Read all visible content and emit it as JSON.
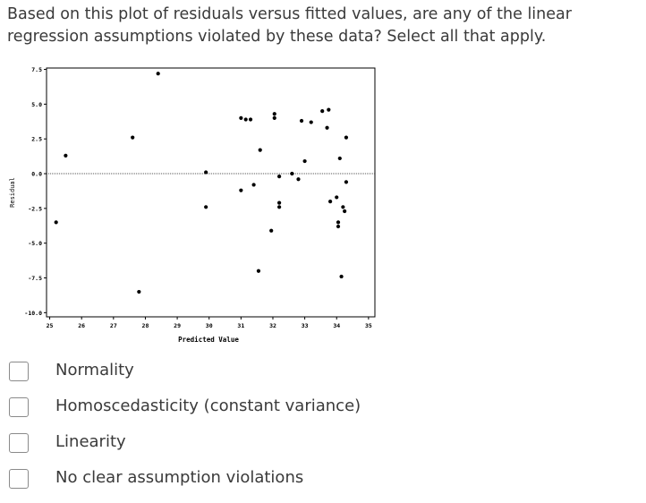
{
  "question": {
    "text": "Based on this plot of residuals versus fitted values, are any of the linear regression assumptions violated by these data? Select all that apply."
  },
  "chart_data": {
    "type": "scatter",
    "xlabel": "Predicted Value",
    "ylabel": "Residual",
    "xlim": [
      24.9,
      35.2
    ],
    "ylim": [
      -10.3,
      7.6
    ],
    "x_ticks": [
      25,
      26,
      27,
      28,
      29,
      30,
      31,
      32,
      33,
      34,
      35
    ],
    "x_tick_labels": [
      "25",
      "26",
      "27",
      "28",
      "29",
      "30",
      "31",
      "32",
      "33",
      "34",
      "35"
    ],
    "y_ticks": [
      7.5,
      5.0,
      2.5,
      0.0,
      -2.5,
      -5.0,
      -7.5,
      -10.0
    ],
    "y_tick_labels": [
      "7.5",
      "5.0",
      "2.5",
      "0.0",
      "-2.5",
      "-5.0",
      "-7.5",
      "-10.0"
    ],
    "reference_line_y": 0,
    "points": [
      {
        "x": 25.2,
        "y": -3.5
      },
      {
        "x": 25.5,
        "y": 1.3
      },
      {
        "x": 27.6,
        "y": 2.6
      },
      {
        "x": 27.8,
        "y": -8.5
      },
      {
        "x": 28.4,
        "y": 7.2
      },
      {
        "x": 29.9,
        "y": 0.1
      },
      {
        "x": 29.9,
        "y": -2.4
      },
      {
        "x": 31.0,
        "y": -1.2
      },
      {
        "x": 31.0,
        "y": 4.0
      },
      {
        "x": 31.15,
        "y": 3.9
      },
      {
        "x": 31.3,
        "y": 3.9
      },
      {
        "x": 31.4,
        "y": -0.8
      },
      {
        "x": 31.55,
        "y": -7.0
      },
      {
        "x": 31.6,
        "y": 1.7
      },
      {
        "x": 31.95,
        "y": -4.1
      },
      {
        "x": 32.05,
        "y": 4.3
      },
      {
        "x": 32.05,
        "y": 4.0
      },
      {
        "x": 32.2,
        "y": -0.2
      },
      {
        "x": 32.2,
        "y": -2.1
      },
      {
        "x": 32.2,
        "y": -2.4
      },
      {
        "x": 32.6,
        "y": 0.0
      },
      {
        "x": 32.8,
        "y": -0.4
      },
      {
        "x": 32.9,
        "y": 3.8
      },
      {
        "x": 33.0,
        "y": 0.9
      },
      {
        "x": 33.2,
        "y": 3.7
      },
      {
        "x": 33.55,
        "y": 4.5
      },
      {
        "x": 33.7,
        "y": 3.3
      },
      {
        "x": 33.75,
        "y": 4.6
      },
      {
        "x": 33.8,
        "y": -2.0
      },
      {
        "x": 34.0,
        "y": -1.7
      },
      {
        "x": 34.05,
        "y": -3.5
      },
      {
        "x": 34.05,
        "y": -3.8
      },
      {
        "x": 34.1,
        "y": 1.1
      },
      {
        "x": 34.15,
        "y": -7.4
      },
      {
        "x": 34.2,
        "y": -2.4
      },
      {
        "x": 34.25,
        "y": -2.7
      },
      {
        "x": 34.3,
        "y": -0.6
      },
      {
        "x": 34.3,
        "y": 2.6
      }
    ]
  },
  "options": [
    {
      "label": "Normality"
    },
    {
      "label": "Homoscedasticity (constant variance)"
    },
    {
      "label": "Linearity"
    },
    {
      "label": "No clear assumption violations"
    }
  ]
}
